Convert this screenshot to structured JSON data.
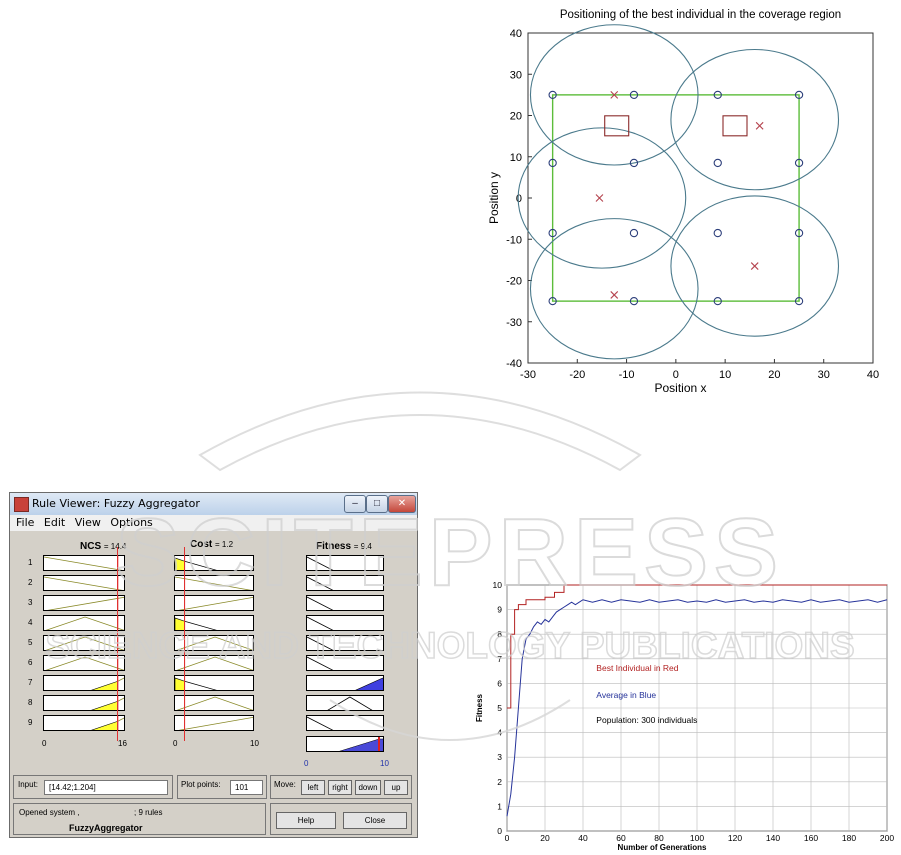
{
  "scatter_chart": {
    "title": "Positioning of the best individual in the coverage region",
    "xlabel": "Position x",
    "ylabel": "Position y",
    "x_ticks": [
      "-30",
      "-20",
      "-10",
      "0",
      "10",
      "20",
      "30",
      "40"
    ],
    "y_ticks": [
      "40",
      "30",
      "20",
      "10",
      "0",
      "-10",
      "-20",
      "-30",
      "-40"
    ]
  },
  "chart_data": [
    {
      "type": "scatter",
      "title": "Positioning of the best individual in the coverage region",
      "xlabel": "Position x",
      "ylabel": "Position y",
      "xlim": [
        -30,
        40
      ],
      "ylim": [
        -40,
        40
      ],
      "region": {
        "x": [
          -25,
          25
        ],
        "y": [
          -25,
          25
        ]
      },
      "circles": [
        {
          "cx": -12.5,
          "cy": 25,
          "r": 17
        },
        {
          "cx": 16,
          "cy": 19,
          "r": 17
        },
        {
          "cx": -15,
          "cy": 0,
          "r": 17
        },
        {
          "cx": -12.5,
          "cy": -22,
          "r": 17
        },
        {
          "cx": 16,
          "cy": -16.5,
          "r": 17
        }
      ],
      "crosses": [
        [
          -12.5,
          25
        ],
        [
          17,
          17.5
        ],
        [
          -15.5,
          0
        ],
        [
          -12.5,
          -23.5
        ],
        [
          16,
          -16.5
        ]
      ],
      "squares": [
        [
          -12,
          17.5
        ],
        [
          12,
          17.5
        ]
      ],
      "markers": [
        [
          -25,
          25
        ],
        [
          -8.5,
          25
        ],
        [
          8.5,
          25
        ],
        [
          25,
          25
        ],
        [
          -25,
          8.5
        ],
        [
          -8.5,
          8.5
        ],
        [
          8.5,
          8.5
        ],
        [
          25,
          8.5
        ],
        [
          -25,
          -8.5
        ],
        [
          -8.5,
          -8.5
        ],
        [
          8.5,
          -8.5
        ],
        [
          25,
          -8.5
        ],
        [
          -25,
          -25
        ],
        [
          -8.5,
          -25
        ],
        [
          8.5,
          -25
        ],
        [
          25,
          -25
        ]
      ],
      "colors": {
        "circle": "#4b7a8c",
        "region": "#5cbd3a",
        "cross": "#b5444f",
        "square": "#8b2a2a",
        "marker": "#2c3e7a"
      }
    },
    {
      "type": "line",
      "xlabel": "Number of Generations",
      "ylabel": "Fitness",
      "xlim": [
        0,
        200
      ],
      "ylim": [
        0,
        10
      ],
      "series": [
        {
          "name": "Best Individual in Red",
          "color": "#b22222",
          "x": [
            0,
            2,
            2,
            4,
            4,
            6,
            6,
            10,
            10,
            20,
            20,
            25,
            25,
            30,
            30,
            40,
            40,
            60,
            60,
            200
          ],
          "y": [
            5,
            5,
            8,
            8,
            9,
            9,
            9.2,
            9.2,
            9.4,
            9.4,
            9.5,
            9.5,
            9.7,
            9.7,
            10,
            10,
            10,
            10,
            10,
            10
          ]
        },
        {
          "name": "Average in Blue",
          "color": "#26339a",
          "x": [
            0,
            2,
            4,
            6,
            8,
            10,
            12,
            14,
            16,
            18,
            20,
            22,
            24,
            26,
            28,
            30,
            32,
            34,
            36,
            38,
            40,
            45,
            50,
            55,
            60,
            65,
            70,
            75,
            80,
            85,
            90,
            95,
            100,
            105,
            110,
            115,
            120,
            125,
            130,
            135,
            140,
            145,
            150,
            155,
            160,
            165,
            170,
            175,
            180,
            185,
            190,
            195,
            200
          ],
          "y": [
            0.6,
            1.5,
            3,
            5,
            7,
            7.8,
            8,
            8.3,
            8.5,
            8.4,
            8.6,
            8.5,
            8.7,
            8.9,
            9,
            9.1,
            9.2,
            9.3,
            9.2,
            9.3,
            9.4,
            9.3,
            9.4,
            9.3,
            9.4,
            9.35,
            9.3,
            9.4,
            9.3,
            9.35,
            9.4,
            9.3,
            9.35,
            9.3,
            9.4,
            9.3,
            9.35,
            9.4,
            9.3,
            9.35,
            9.3,
            9.4,
            9.35,
            9.3,
            9.4,
            9.3,
            9.35,
            9.4,
            9.3,
            9.35,
            9.4,
            9.3,
            9.4
          ]
        }
      ],
      "annotation": "Population: 300 individuals",
      "x_ticks": [
        "0",
        "20",
        "40",
        "60",
        "80",
        "100",
        "120",
        "140",
        "160",
        "180",
        "200"
      ],
      "y_ticks": [
        "10",
        "9",
        "8",
        "7",
        "6",
        "5",
        "4",
        "3",
        "2",
        "1",
        "0"
      ]
    }
  ],
  "rule_viewer": {
    "title": "Rule Viewer:   Fuzzy Aggregator",
    "menu": [
      "File",
      "Edit",
      "View",
      "Options"
    ],
    "inputs": [
      {
        "name": "NCS",
        "value": "= 14.4",
        "range_min": "0",
        "range_max": "16"
      },
      {
        "name": "Cost",
        "value": "= 1.2",
        "range_min": "0",
        "range_max": "10"
      }
    ],
    "output": {
      "name": "Fitness",
      "value": "= 9.4",
      "range_min": "0",
      "range_max": "10"
    },
    "rules": [
      "1",
      "2",
      "3",
      "4",
      "5",
      "6",
      "7",
      "8",
      "9"
    ],
    "input_label": "Input:",
    "input_value": "[14.42;1.204]",
    "plot_points_label": "Plot points:",
    "plot_points_value": "101",
    "move_label": "Move:",
    "move_buttons": [
      "left",
      "right",
      "down",
      "up"
    ],
    "status_line1": "Opened system ,",
    "status_rules": "; 9 rules",
    "status_system": "FuzzyAggregator",
    "help_label": "Help",
    "close_label": "Close"
  },
  "watermark": {
    "line1": "SCITEPRESS",
    "line2": "SCIENCE AND TECHNOLOGY PUBLICATIONS"
  }
}
